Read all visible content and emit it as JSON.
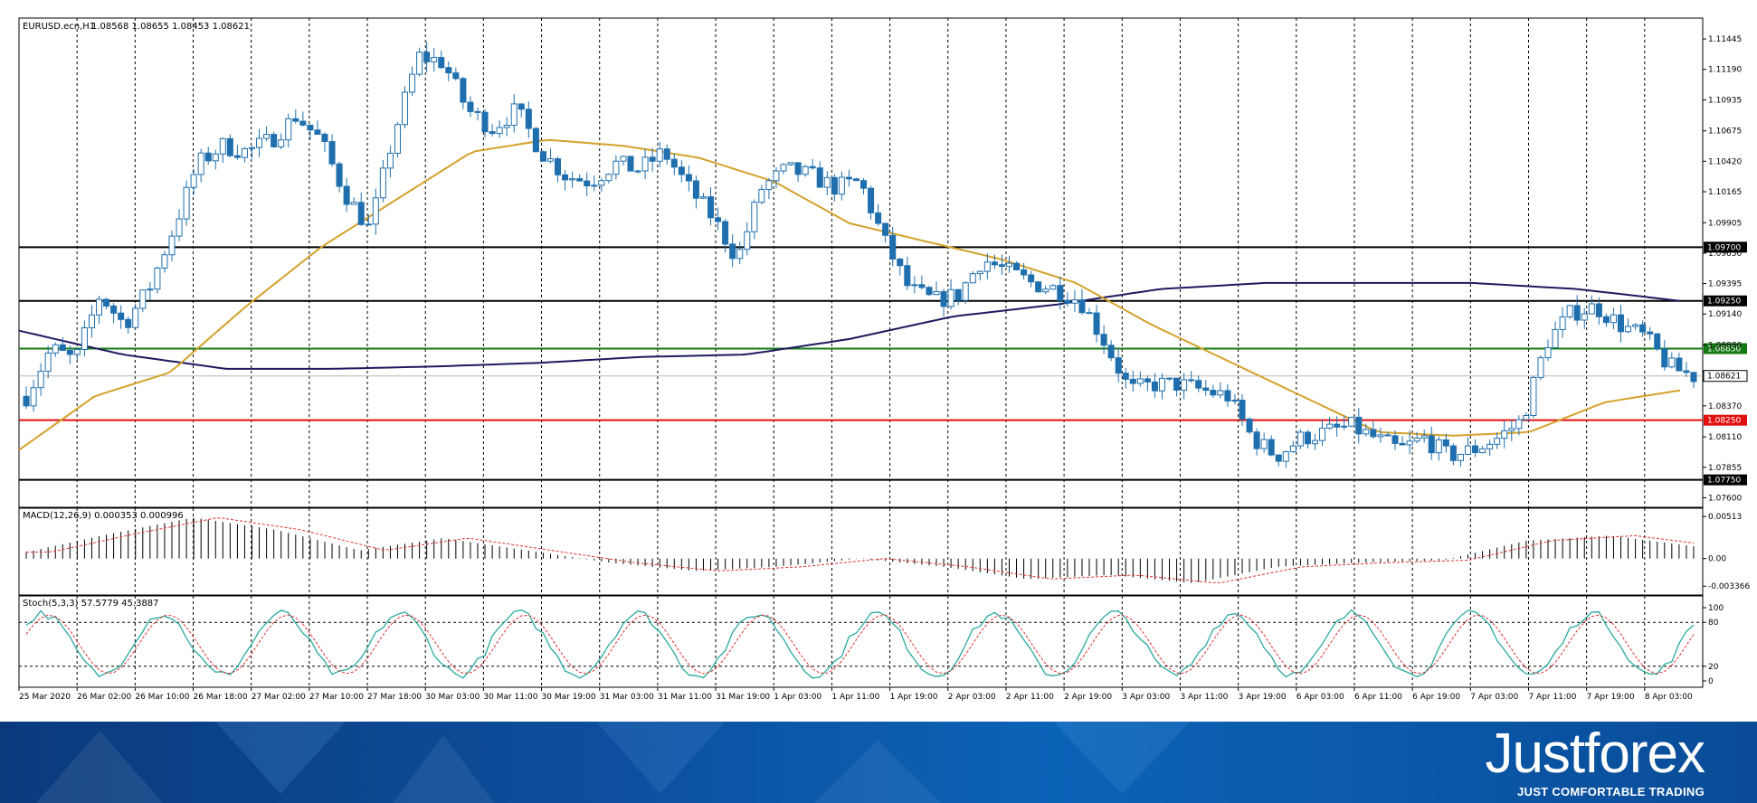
{
  "chart_header": {
    "symbol": "EURUSD.ecn,H1",
    "ohlc": "1.08568 1.08655 1.08453 1.08621"
  },
  "macd_header": "MACD(12,26,9) 0.000353 0.000996",
  "stoch_header": "Stoch(5,3,3) 57.5779 45.3887",
  "price_axis": {
    "labels": [
      "1.11445",
      "1.11190",
      "1.10935",
      "1.10675",
      "1.10420",
      "1.10165",
      "1.09905",
      "1.09650",
      "1.09395",
      "1.09140",
      "1.08880",
      "1.08370",
      "1.08110",
      "1.07855",
      "1.07600"
    ],
    "values": [
      1.11445,
      1.1119,
      1.10935,
      1.10675,
      1.1042,
      1.10165,
      1.09905,
      1.0965,
      1.09395,
      1.0914,
      1.0888,
      1.0837,
      1.0811,
      1.07855,
      1.076
    ],
    "range": [
      1.0752,
      1.1162
    ]
  },
  "macd_axis": {
    "labels": [
      "0.00513",
      "0.00",
      "-0.003366"
    ],
    "values": [
      0.00513,
      0.0,
      -0.003366
    ],
    "range": [
      -0.004,
      0.0057
    ]
  },
  "stoch_axis": {
    "labels": [
      "100",
      "80",
      "20",
      "0"
    ],
    "values": [
      100,
      80,
      20,
      0
    ]
  },
  "levels": [
    {
      "price": 1.097,
      "label": "1.09700",
      "color": "#000000"
    },
    {
      "price": 1.0925,
      "label": "1.09250",
      "color": "#000000"
    },
    {
      "price": 1.0885,
      "label": "1.08850",
      "color": "#137a13"
    },
    {
      "price": 1.0825,
      "label": "1.08250",
      "color": "#e01010"
    },
    {
      "price": 1.0775,
      "label": "1.07750",
      "color": "#000000"
    }
  ],
  "current_price": {
    "price": 1.08621,
    "label": "1.08621"
  },
  "time_labels": [
    "25 Mar 2020",
    "26 Mar 02:00",
    "26 Mar 10:00",
    "26 Mar 18:00",
    "27 Mar 02:00",
    "27 Mar 10:00",
    "27 Mar 18:00",
    "30 Mar 03:00",
    "30 Mar 11:00",
    "30 Mar 19:00",
    "31 Mar 03:00",
    "31 Mar 11:00",
    "31 Mar 19:00",
    "1 Apr 03:00",
    "1 Apr 11:00",
    "1 Apr 19:00",
    "2 Apr 03:00",
    "2 Apr 11:00",
    "2 Apr 19:00",
    "3 Apr 03:00",
    "3 Apr 11:00",
    "3 Apr 19:00",
    "6 Apr 03:00",
    "6 Apr 11:00",
    "6 Apr 19:00",
    "7 Apr 03:00",
    "7 Apr 11:00",
    "7 Apr 19:00",
    "8 Apr 03:00"
  ],
  "close_path": [
    1.0845,
    1.0885,
    1.0875,
    1.093,
    1.0905,
    1.0935,
    1.0985,
    1.104,
    1.1055,
    1.105,
    1.106,
    1.108,
    1.106,
    1.1015,
    1.0985,
    1.1065,
    1.113,
    1.1125,
    1.1085,
    1.107,
    1.1085,
    1.105,
    1.103,
    1.1025,
    1.104,
    1.1035,
    1.105,
    1.102,
    1.0995,
    1.096,
    1.102,
    1.1035,
    1.103,
    1.102,
    1.1025,
    1.0975,
    1.0935,
    1.0925,
    1.093,
    1.096,
    1.095,
    1.094,
    1.0935,
    1.0925,
    1.089,
    1.085,
    1.0855,
    1.0855,
    1.085,
    1.0845,
    1.081,
    1.0795,
    1.081,
    1.0815,
    1.082,
    1.081,
    1.08,
    1.081,
    1.0795,
    1.08,
    1.081,
    1.0825,
    1.089,
    1.0915,
    1.092,
    1.0905,
    1.0895,
    1.087,
    1.0862
  ],
  "sma_slow_path": [
    1.09,
    1.088,
    1.0868,
    1.0868,
    1.087,
    1.0873,
    1.0878,
    1.088,
    1.0893,
    1.0912,
    1.0922,
    1.0935,
    1.094,
    1.094,
    1.094,
    1.0935,
    1.0925
  ],
  "sma_fast_path": [
    1.08,
    1.0845,
    1.0865,
    1.092,
    1.097,
    1.101,
    1.105,
    1.106,
    1.1055,
    1.1045,
    1.1025,
    1.099,
    1.0975,
    1.096,
    1.094,
    1.0905,
    1.0875,
    1.0845,
    1.0815,
    1.0812,
    1.0815,
    1.084,
    1.085
  ],
  "indicator_colors": {
    "bull_body": "#ffffff",
    "bear_body": "#1f6fae",
    "candle_outline": "#1f6fae",
    "sma_fast": "#d4a12a",
    "sma_slow": "#1f1a5e",
    "stoch_main": "#2aa9a0",
    "stoch_signal": "#e03030",
    "macd_signal": "#e03030"
  },
  "footer": {
    "brand": "Justforex",
    "tagline": "JUST COMFORTABLE TRADING"
  }
}
